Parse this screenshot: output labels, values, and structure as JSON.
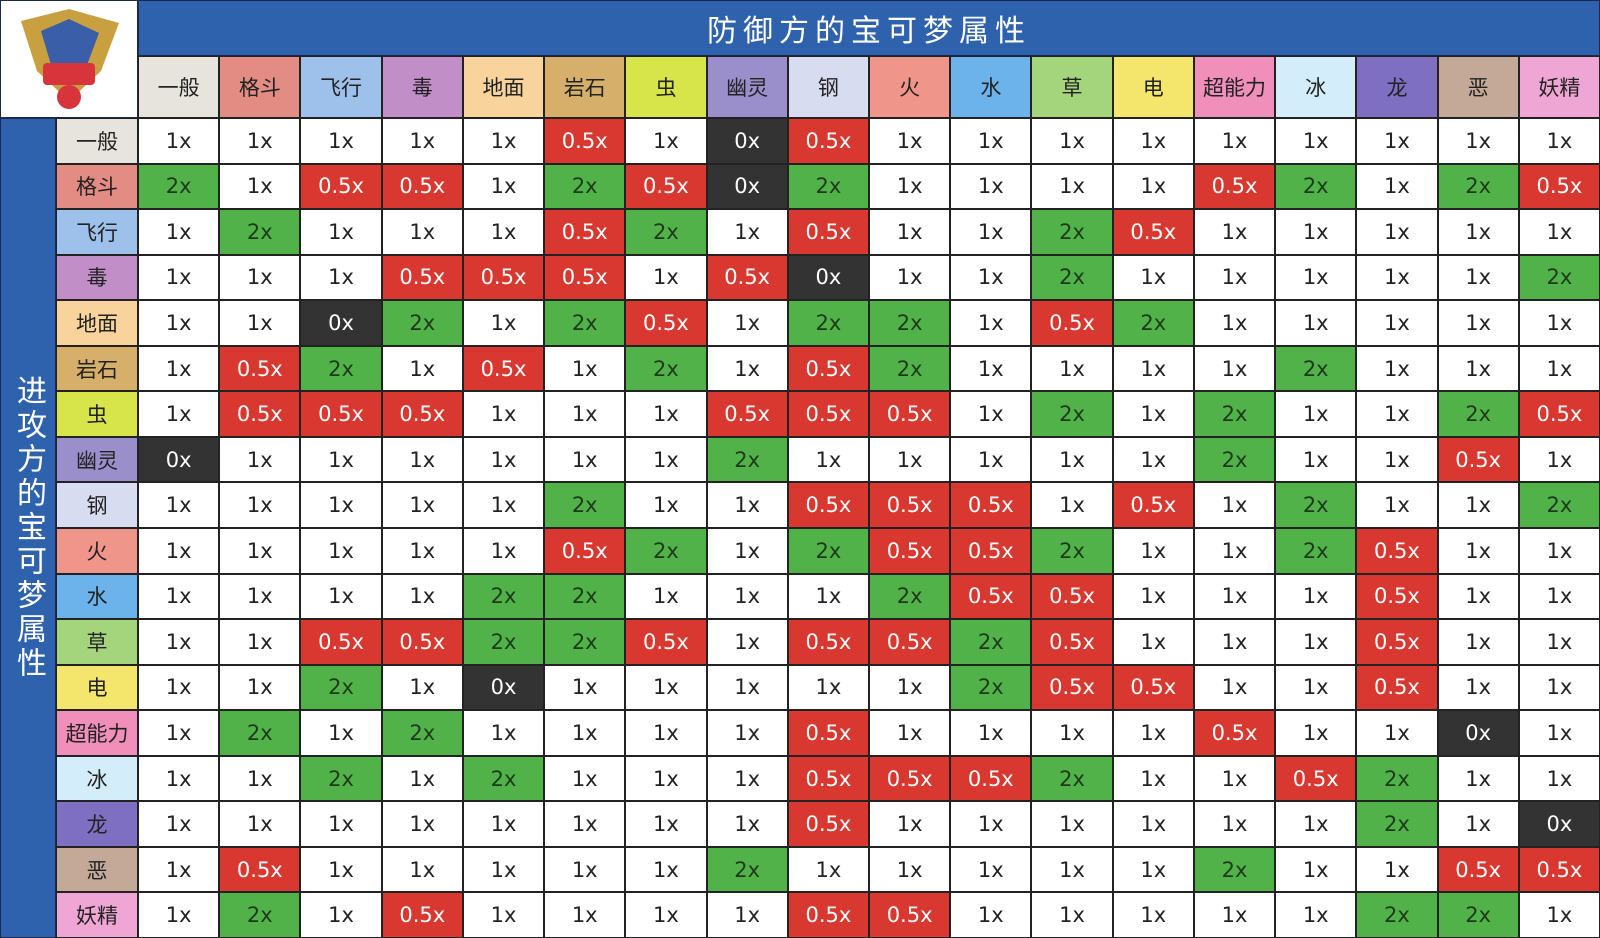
{
  "header": {
    "title": "防御方的宝可梦属性",
    "side_title": "进攻方的宝可梦属性"
  },
  "cell_colors": {
    "1x": "#ffffff",
    "2x": "#52b24a",
    "0.5x": "#d8382f",
    "0x": "#333333"
  },
  "cell_text_colors": {
    "1x": "#222222",
    "2x": "#1e3a1a",
    "0.5x": "#ffffff",
    "0x": "#ffffff"
  },
  "types": [
    {
      "name": "一般",
      "color": "#e6e4dc"
    },
    {
      "name": "格斗",
      "color": "#e38c83"
    },
    {
      "name": "飞行",
      "color": "#9ec1ec"
    },
    {
      "name": "毒",
      "color": "#c18ec8"
    },
    {
      "name": "地面",
      "color": "#f8d49c"
    },
    {
      "name": "岩石",
      "color": "#d6b06a"
    },
    {
      "name": "虫",
      "color": "#d7e44a"
    },
    {
      "name": "幽灵",
      "color": "#9b8fcb"
    },
    {
      "name": "钢",
      "color": "#d8dcf0"
    },
    {
      "name": "火",
      "color": "#f0958a"
    },
    {
      "name": "水",
      "color": "#6bb3ea"
    },
    {
      "name": "草",
      "color": "#a4d47c"
    },
    {
      "name": "电",
      "color": "#f4e56c"
    },
    {
      "name": "超能力",
      "color": "#f08fba"
    },
    {
      "name": "冰",
      "color": "#d3eefa"
    },
    {
      "name": "龙",
      "color": "#7e6fc2"
    },
    {
      "name": "恶",
      "color": "#c4a898"
    },
    {
      "name": "妖精",
      "color": "#f0a6d4"
    }
  ],
  "rows": [
    {
      "name": "一般",
      "color": "#e6e4dc",
      "cells": [
        "1x",
        "1x",
        "1x",
        "1x",
        "1x",
        "0.5x",
        "1x",
        "0x",
        "0.5x",
        "1x",
        "1x",
        "1x",
        "1x",
        "1x",
        "1x",
        "1x",
        "1x",
        "1x"
      ]
    },
    {
      "name": "格斗",
      "color": "#e38c83",
      "cells": [
        "2x",
        "1x",
        "0.5x",
        "0.5x",
        "1x",
        "2x",
        "0.5x",
        "0x",
        "2x",
        "1x",
        "1x",
        "1x",
        "1x",
        "0.5x",
        "2x",
        "1x",
        "2x",
        "0.5x"
      ]
    },
    {
      "name": "飞行",
      "color": "#9ec1ec",
      "cells": [
        "1x",
        "2x",
        "1x",
        "1x",
        "1x",
        "0.5x",
        "2x",
        "1x",
        "0.5x",
        "1x",
        "1x",
        "2x",
        "0.5x",
        "1x",
        "1x",
        "1x",
        "1x",
        "1x"
      ]
    },
    {
      "name": "毒",
      "color": "#c18ec8",
      "cells": [
        "1x",
        "1x",
        "1x",
        "0.5x",
        "0.5x",
        "0.5x",
        "1x",
        "0.5x",
        "0x",
        "1x",
        "1x",
        "2x",
        "1x",
        "1x",
        "1x",
        "1x",
        "1x",
        "2x"
      ]
    },
    {
      "name": "地面",
      "color": "#f8d49c",
      "cells": [
        "1x",
        "1x",
        "0x",
        "2x",
        "1x",
        "2x",
        "0.5x",
        "1x",
        "2x",
        "2x",
        "1x",
        "0.5x",
        "2x",
        "1x",
        "1x",
        "1x",
        "1x",
        "1x"
      ]
    },
    {
      "name": "岩石",
      "color": "#d6b06a",
      "cells": [
        "1x",
        "0.5x",
        "2x",
        "1x",
        "0.5x",
        "1x",
        "2x",
        "1x",
        "0.5x",
        "2x",
        "1x",
        "1x",
        "1x",
        "1x",
        "2x",
        "1x",
        "1x",
        "1x"
      ]
    },
    {
      "name": "虫",
      "color": "#d7e44a",
      "cells": [
        "1x",
        "0.5x",
        "0.5x",
        "0.5x",
        "1x",
        "1x",
        "1x",
        "0.5x",
        "0.5x",
        "0.5x",
        "1x",
        "2x",
        "1x",
        "2x",
        "1x",
        "1x",
        "2x",
        "0.5x"
      ]
    },
    {
      "name": "幽灵",
      "color": "#9b8fcb",
      "cells": [
        "0x",
        "1x",
        "1x",
        "1x",
        "1x",
        "1x",
        "1x",
        "2x",
        "1x",
        "1x",
        "1x",
        "1x",
        "1x",
        "2x",
        "1x",
        "1x",
        "0.5x",
        "1x"
      ]
    },
    {
      "name": "钢",
      "color": "#d8dcf0",
      "cells": [
        "1x",
        "1x",
        "1x",
        "1x",
        "1x",
        "2x",
        "1x",
        "1x",
        "0.5x",
        "0.5x",
        "0.5x",
        "1x",
        "0.5x",
        "1x",
        "2x",
        "1x",
        "1x",
        "2x"
      ]
    },
    {
      "name": "火",
      "color": "#f0958a",
      "cells": [
        "1x",
        "1x",
        "1x",
        "1x",
        "1x",
        "0.5x",
        "2x",
        "1x",
        "2x",
        "0.5x",
        "0.5x",
        "2x",
        "1x",
        "1x",
        "2x",
        "0.5x",
        "1x",
        "1x"
      ]
    },
    {
      "name": "水",
      "color": "#6bb3ea",
      "cells": [
        "1x",
        "1x",
        "1x",
        "1x",
        "2x",
        "2x",
        "1x",
        "1x",
        "1x",
        "2x",
        "0.5x",
        "0.5x",
        "1x",
        "1x",
        "1x",
        "0.5x",
        "1x",
        "1x"
      ]
    },
    {
      "name": "草",
      "color": "#a4d47c",
      "cells": [
        "1x",
        "1x",
        "0.5x",
        "0.5x",
        "2x",
        "2x",
        "0.5x",
        "1x",
        "0.5x",
        "0.5x",
        "2x",
        "0.5x",
        "1x",
        "1x",
        "1x",
        "0.5x",
        "1x",
        "1x"
      ]
    },
    {
      "name": "电",
      "color": "#f4e56c",
      "cells": [
        "1x",
        "1x",
        "2x",
        "1x",
        "0x",
        "1x",
        "1x",
        "1x",
        "1x",
        "1x",
        "2x",
        "0.5x",
        "0.5x",
        "1x",
        "1x",
        "0.5x",
        "1x",
        "1x"
      ]
    },
    {
      "name": "超能力",
      "color": "#f08fba",
      "cells": [
        "1x",
        "2x",
        "1x",
        "2x",
        "1x",
        "1x",
        "1x",
        "1x",
        "0.5x",
        "1x",
        "1x",
        "1x",
        "1x",
        "0.5x",
        "1x",
        "1x",
        "0x",
        "1x"
      ]
    },
    {
      "name": "冰",
      "color": "#d3eefa",
      "cells": [
        "1x",
        "1x",
        "2x",
        "1x",
        "2x",
        "1x",
        "1x",
        "1x",
        "0.5x",
        "0.5x",
        "0.5x",
        "2x",
        "1x",
        "1x",
        "0.5x",
        "2x",
        "1x",
        "1x"
      ]
    },
    {
      "name": "龙",
      "color": "#7e6fc2",
      "cells": [
        "1x",
        "1x",
        "1x",
        "1x",
        "1x",
        "1x",
        "1x",
        "1x",
        "0.5x",
        "1x",
        "1x",
        "1x",
        "1x",
        "1x",
        "1x",
        "2x",
        "1x",
        "0x"
      ]
    },
    {
      "name": "恶",
      "color": "#c4a898",
      "cells": [
        "1x",
        "0.5x",
        "1x",
        "1x",
        "1x",
        "1x",
        "1x",
        "2x",
        "1x",
        "1x",
        "1x",
        "1x",
        "1x",
        "2x",
        "1x",
        "1x",
        "0.5x",
        "0.5x"
      ]
    },
    {
      "name": "妖精",
      "color": "#f0a6d4",
      "cells": [
        "1x",
        "2x",
        "1x",
        "0.5x",
        "1x",
        "1x",
        "1x",
        "1x",
        "0.5x",
        "0.5x",
        "1x",
        "1x",
        "1x",
        "1x",
        "1x",
        "2x",
        "2x",
        "1x"
      ]
    }
  ]
}
